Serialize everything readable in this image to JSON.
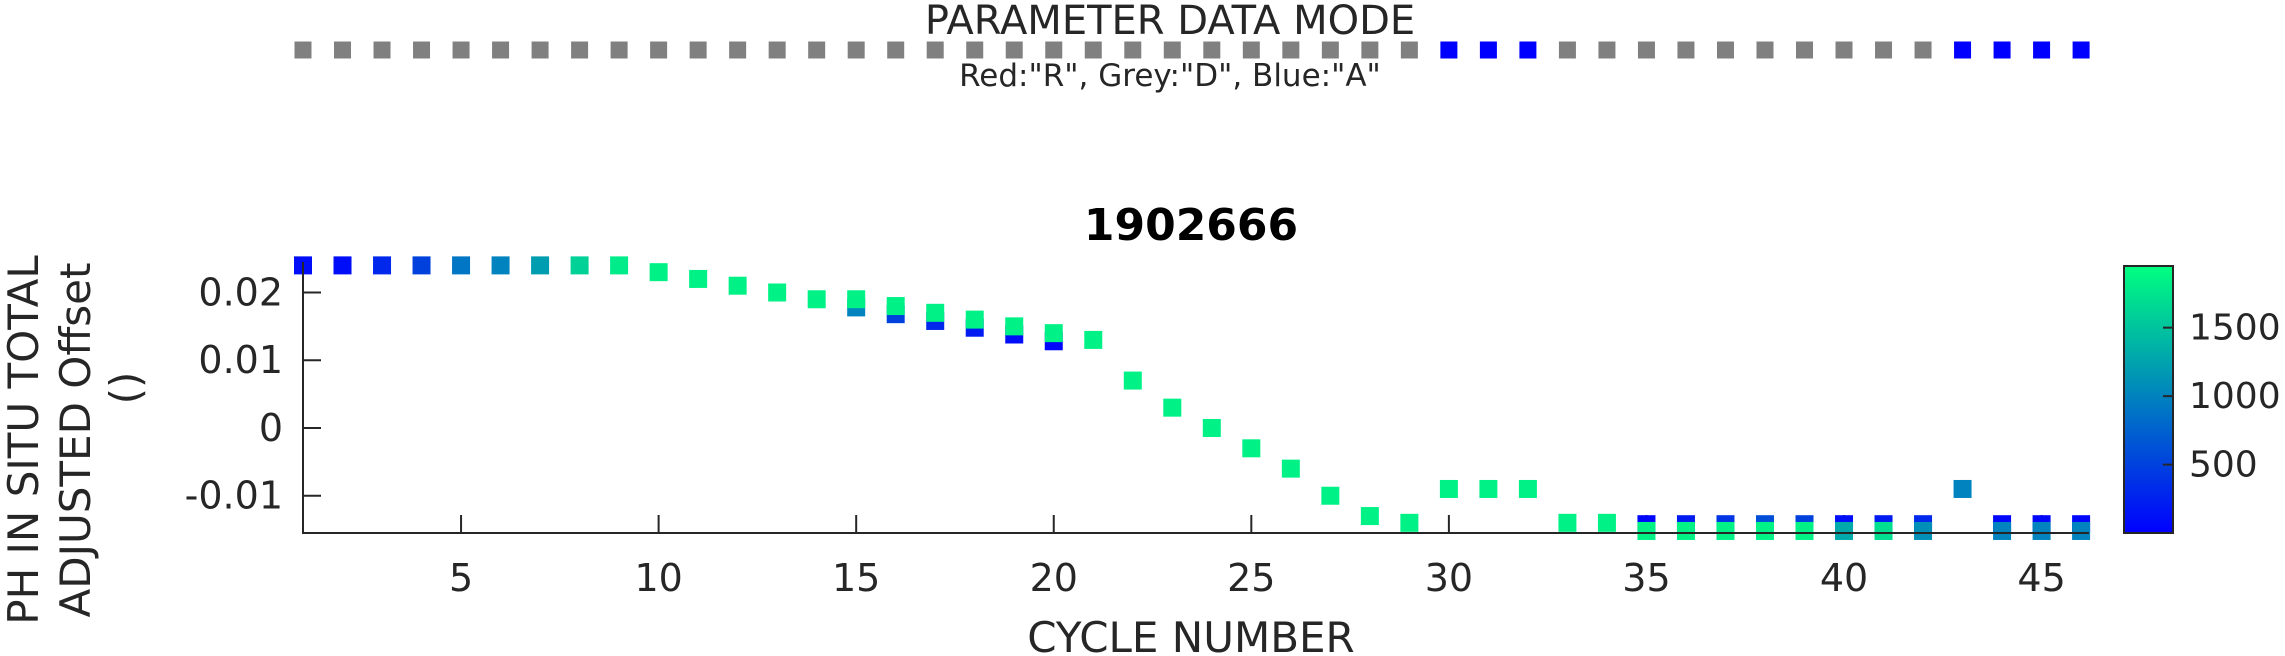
{
  "data_mode": {
    "title": "PARAMETER DATA MODE",
    "legend": "Red:\"R\", Grey:\"D\", Blue:\"A\"",
    "colors": {
      "R": "#ff0000",
      "D": "#808080",
      "A": "#0000ff"
    },
    "cycles": [
      1,
      2,
      3,
      4,
      5,
      6,
      7,
      8,
      9,
      10,
      11,
      12,
      13,
      14,
      15,
      16,
      17,
      18,
      19,
      20,
      21,
      22,
      23,
      24,
      25,
      26,
      27,
      28,
      29,
      30,
      31,
      32,
      33,
      34,
      35,
      36,
      37,
      38,
      39,
      40,
      41,
      42,
      43,
      44,
      45,
      46
    ],
    "modes": [
      "D",
      "D",
      "D",
      "D",
      "D",
      "D",
      "D",
      "D",
      "D",
      "D",
      "D",
      "D",
      "D",
      "D",
      "D",
      "D",
      "D",
      "D",
      "D",
      "D",
      "D",
      "D",
      "D",
      "D",
      "D",
      "D",
      "D",
      "D",
      "D",
      "A",
      "A",
      "A",
      "D",
      "D",
      "D",
      "D",
      "D",
      "D",
      "D",
      "D",
      "D",
      "D",
      "A",
      "A",
      "A",
      "A"
    ]
  },
  "chart_data": {
    "type": "scatter",
    "title": "1902666",
    "xlabel": "CYCLE NUMBER",
    "ylabel_lines": [
      "PH IN SITU TOTAL",
      "ADJUSTED Offset",
      "()"
    ],
    "xlim": [
      1,
      46.2
    ],
    "ylim": [
      -0.0155,
      0.0245
    ],
    "xticks": [
      5,
      10,
      15,
      20,
      25,
      30,
      35,
      40,
      45
    ],
    "yticks": [
      -0.01,
      0,
      0.01,
      0.02
    ],
    "ytick_labels": [
      "-0.01",
      "0",
      "0.01",
      "0.02"
    ],
    "colorbar": {
      "ticks": [
        500,
        1000,
        1500
      ],
      "tick_labels": [
        "500",
        "1000",
        "1500"
      ],
      "range": [
        1,
        1950
      ],
      "colormap": "winter"
    },
    "points": [
      {
        "x": 1,
        "y": 0.024,
        "c": 100
      },
      {
        "x": 2,
        "y": 0.024,
        "c": 100
      },
      {
        "x": 3,
        "y": 0.024,
        "c": 300
      },
      {
        "x": 4,
        "y": 0.024,
        "c": 500
      },
      {
        "x": 5,
        "y": 0.024,
        "c": 900
      },
      {
        "x": 6,
        "y": 0.024,
        "c": 1000
      },
      {
        "x": 7,
        "y": 0.024,
        "c": 1200
      },
      {
        "x": 8,
        "y": 0.024,
        "c": 1600
      },
      {
        "x": 9,
        "y": 0.024,
        "c": 1800
      },
      {
        "x": 10,
        "y": 0.023,
        "c": 1850
      },
      {
        "x": 11,
        "y": 0.022,
        "c": 1850
      },
      {
        "x": 12,
        "y": 0.021,
        "c": 1850
      },
      {
        "x": 13,
        "y": 0.02,
        "c": 1850
      },
      {
        "x": 14,
        "y": 0.019,
        "c": 1850
      },
      {
        "x": 15,
        "y": 0.0178,
        "c": 1000
      },
      {
        "x": 15,
        "y": 0.019,
        "c": 1850
      },
      {
        "x": 16,
        "y": 0.0168,
        "c": 500
      },
      {
        "x": 16,
        "y": 0.018,
        "c": 1850
      },
      {
        "x": 17,
        "y": 0.0158,
        "c": 300
      },
      {
        "x": 17,
        "y": 0.017,
        "c": 1850
      },
      {
        "x": 18,
        "y": 0.0148,
        "c": 200
      },
      {
        "x": 18,
        "y": 0.016,
        "c": 1850
      },
      {
        "x": 19,
        "y": 0.0138,
        "c": 100
      },
      {
        "x": 19,
        "y": 0.015,
        "c": 1850
      },
      {
        "x": 20,
        "y": 0.0128,
        "c": 50
      },
      {
        "x": 20,
        "y": 0.014,
        "c": 1850
      },
      {
        "x": 21,
        "y": 0.013,
        "c": 1850
      },
      {
        "x": 22,
        "y": 0.007,
        "c": 1850
      },
      {
        "x": 23,
        "y": 0.003,
        "c": 1850
      },
      {
        "x": 24,
        "y": 0.0,
        "c": 1850
      },
      {
        "x": 25,
        "y": -0.003,
        "c": 1850
      },
      {
        "x": 26,
        "y": -0.006,
        "c": 1850
      },
      {
        "x": 27,
        "y": -0.01,
        "c": 1850
      },
      {
        "x": 28,
        "y": -0.013,
        "c": 1850
      },
      {
        "x": 29,
        "y": -0.014,
        "c": 1850
      },
      {
        "x": 30,
        "y": -0.009,
        "c": 1850
      },
      {
        "x": 31,
        "y": -0.009,
        "c": 1850
      },
      {
        "x": 32,
        "y": -0.009,
        "c": 1850
      },
      {
        "x": 33,
        "y": -0.014,
        "c": 1850
      },
      {
        "x": 34,
        "y": -0.014,
        "c": 1850
      },
      {
        "x": 35,
        "y": -0.0142,
        "c": 50
      },
      {
        "x": 35,
        "y": -0.0152,
        "c": 1850
      },
      {
        "x": 36,
        "y": -0.0142,
        "c": 200
      },
      {
        "x": 36,
        "y": -0.0152,
        "c": 1850
      },
      {
        "x": 37,
        "y": -0.0142,
        "c": 400
      },
      {
        "x": 37,
        "y": -0.0152,
        "c": 1850
      },
      {
        "x": 38,
        "y": -0.0142,
        "c": 600
      },
      {
        "x": 38,
        "y": -0.0152,
        "c": 1850
      },
      {
        "x": 39,
        "y": -0.0142,
        "c": 500
      },
      {
        "x": 39,
        "y": -0.0152,
        "c": 1850
      },
      {
        "x": 40,
        "y": -0.0142,
        "c": 100
      },
      {
        "x": 40,
        "y": -0.0152,
        "c": 1300
      },
      {
        "x": 41,
        "y": -0.0142,
        "c": 200
      },
      {
        "x": 41,
        "y": -0.0152,
        "c": 1700
      },
      {
        "x": 42,
        "y": -0.0142,
        "c": 300
      },
      {
        "x": 42,
        "y": -0.0152,
        "c": 1100
      },
      {
        "x": 43,
        "y": -0.009,
        "c": 1000
      },
      {
        "x": 44,
        "y": -0.0142,
        "c": 50
      },
      {
        "x": 44,
        "y": -0.0152,
        "c": 1000
      },
      {
        "x": 45,
        "y": -0.0142,
        "c": 50
      },
      {
        "x": 45,
        "y": -0.0152,
        "c": 1000
      },
      {
        "x": 46,
        "y": -0.0142,
        "c": 50
      },
      {
        "x": 46,
        "y": -0.0152,
        "c": 1000
      }
    ]
  }
}
